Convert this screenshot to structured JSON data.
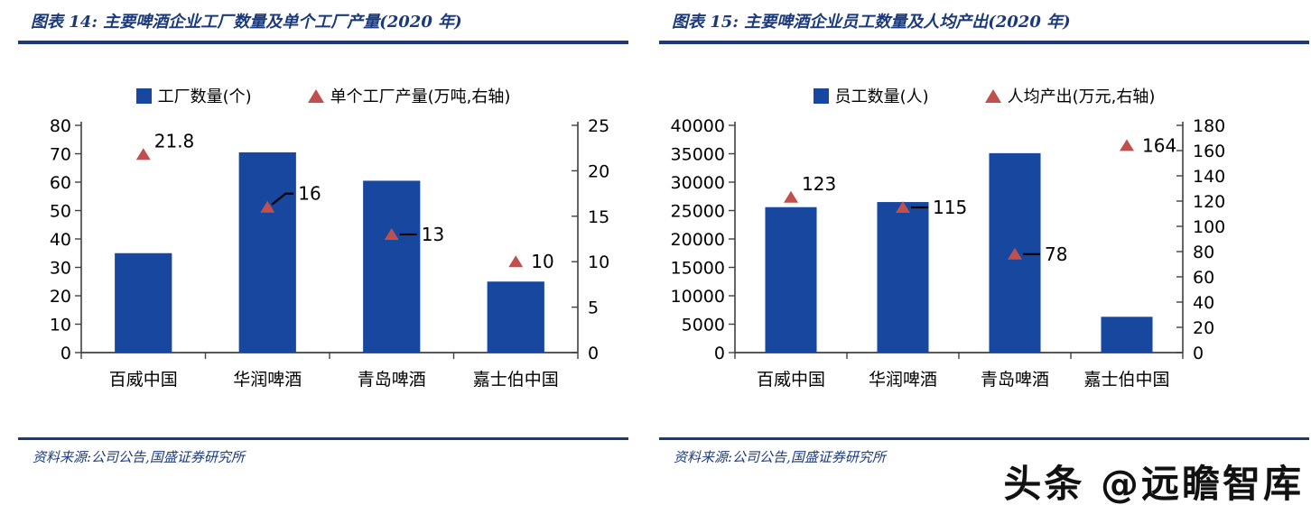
{
  "colors": {
    "bar_blue": "#17479E",
    "triangle_red": "#C0504D",
    "navy": "#1b3a7c",
    "axis_line": "#404040",
    "label_black": "#000000",
    "watermark_black": "#111111"
  },
  "watermark": "头条 @远瞻智库",
  "figures": [
    {
      "title": "图表 14:  主要啤酒企业工厂数量及单个工厂产量(2020 年)",
      "source": "资料来源:公司公告,国盛证券研究所",
      "legend": [
        {
          "marker": "blue-square",
          "label": "工厂数量(个)"
        },
        {
          "marker": "red-triangle",
          "label": "单个工厂产量(万吨,右轴)"
        }
      ]
    },
    {
      "title": "图表 15:  主要啤酒企业员工数量及人均产出(2020 年)",
      "source": "资料来源:公司公告,国盛证券研究所",
      "legend": [
        {
          "marker": "blue-square",
          "label": "员工数量(人)"
        },
        {
          "marker": "red-triangle",
          "label": "人均产出(万元,右轴)"
        }
      ]
    }
  ],
  "chart_data": [
    {
      "type": "bar",
      "title": "主要啤酒企业工厂数量及单个工厂产量(2020 年)",
      "categories": [
        "百威中国",
        "华润啤酒",
        "青岛啤酒",
        "嘉士伯中国"
      ],
      "series": [
        {
          "name": "工厂数量(个)",
          "type": "bar",
          "axis": "left",
          "values": [
            35,
            70.5,
            60.5,
            25
          ]
        },
        {
          "name": "单个工厂产量(万吨,右轴)",
          "type": "scatter",
          "marker": "triangle",
          "axis": "right",
          "values": [
            21.8,
            16,
            13,
            10
          ],
          "point_labels": [
            "21.8",
            "16",
            "13",
            "10"
          ],
          "annotation_styles": [
            "above",
            "leader-bent",
            "leader-straight",
            "right"
          ]
        }
      ],
      "left_axis": {
        "min": 0,
        "max": 80,
        "step": 10
      },
      "right_axis": {
        "min": 0,
        "max": 25,
        "step": 5
      },
      "grid": false,
      "legend_position": "top"
    },
    {
      "type": "bar",
      "title": "主要啤酒企业员工数量及人均产出(2020 年)",
      "categories": [
        "百威中国",
        "华润啤酒",
        "青岛啤酒",
        "嘉士伯中国"
      ],
      "series": [
        {
          "name": "员工数量(人)",
          "type": "bar",
          "axis": "left",
          "values": [
            25600,
            26500,
            35100,
            6300
          ]
        },
        {
          "name": "人均产出(万元,右轴)",
          "type": "scatter",
          "marker": "triangle",
          "axis": "right",
          "values": [
            123,
            115,
            78,
            164
          ],
          "point_labels": [
            "123",
            "115",
            "78",
            "164"
          ],
          "annotation_styles": [
            "above",
            "leader-straight",
            "leader-straight",
            "right"
          ]
        }
      ],
      "left_axis": {
        "min": 0,
        "max": 40000,
        "step": 5000
      },
      "right_axis": {
        "min": 0,
        "max": 180,
        "step": 20
      },
      "grid": false,
      "legend_position": "top"
    }
  ]
}
